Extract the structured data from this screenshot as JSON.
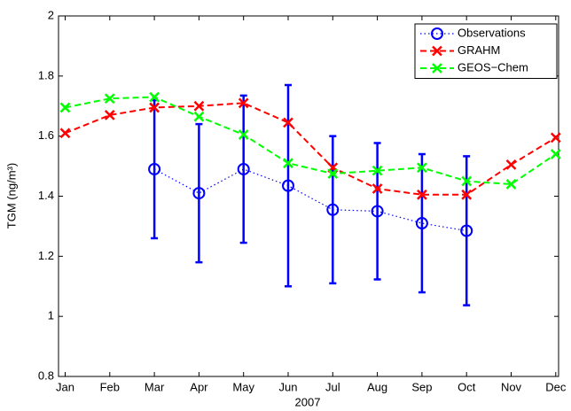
{
  "chart_data": {
    "type": "line",
    "x_label": "2007",
    "y_label": "TGM (ng/m³)",
    "categories": [
      "Jan",
      "Feb",
      "Mar",
      "Apr",
      "May",
      "Jun",
      "Jul",
      "Aug",
      "Sep",
      "Oct",
      "Nov",
      "Dec"
    ],
    "ylim": [
      0.8,
      2
    ],
    "yticks": [
      0.8,
      1,
      1.2,
      1.4,
      1.6,
      1.8,
      2
    ],
    "grid": false,
    "legend": "upper right",
    "series": [
      {
        "name": "Observations",
        "color": "#0000ff",
        "linestyle": "dotted",
        "marker": "o",
        "values": [
          null,
          null,
          1.49,
          1.41,
          1.49,
          1.435,
          1.355,
          1.35,
          1.31,
          1.285,
          null,
          null
        ],
        "errors": [
          null,
          null,
          0.23,
          0.23,
          0.245,
          0.335,
          0.245,
          0.227,
          0.23,
          0.248,
          null,
          null
        ]
      },
      {
        "name": "GRAHM",
        "color": "#ff0000",
        "linestyle": "dashed",
        "marker": "x",
        "values": [
          1.61,
          1.67,
          1.695,
          1.7,
          1.71,
          1.645,
          1.495,
          1.425,
          1.405,
          1.405,
          1.505,
          1.595
        ]
      },
      {
        "name": "GEOS−Chem",
        "color": "#00ff00",
        "linestyle": "dashed",
        "marker": "x",
        "values": [
          1.695,
          1.725,
          1.73,
          1.665,
          1.605,
          1.51,
          1.475,
          1.485,
          1.495,
          1.45,
          1.44,
          1.54
        ]
      }
    ]
  }
}
